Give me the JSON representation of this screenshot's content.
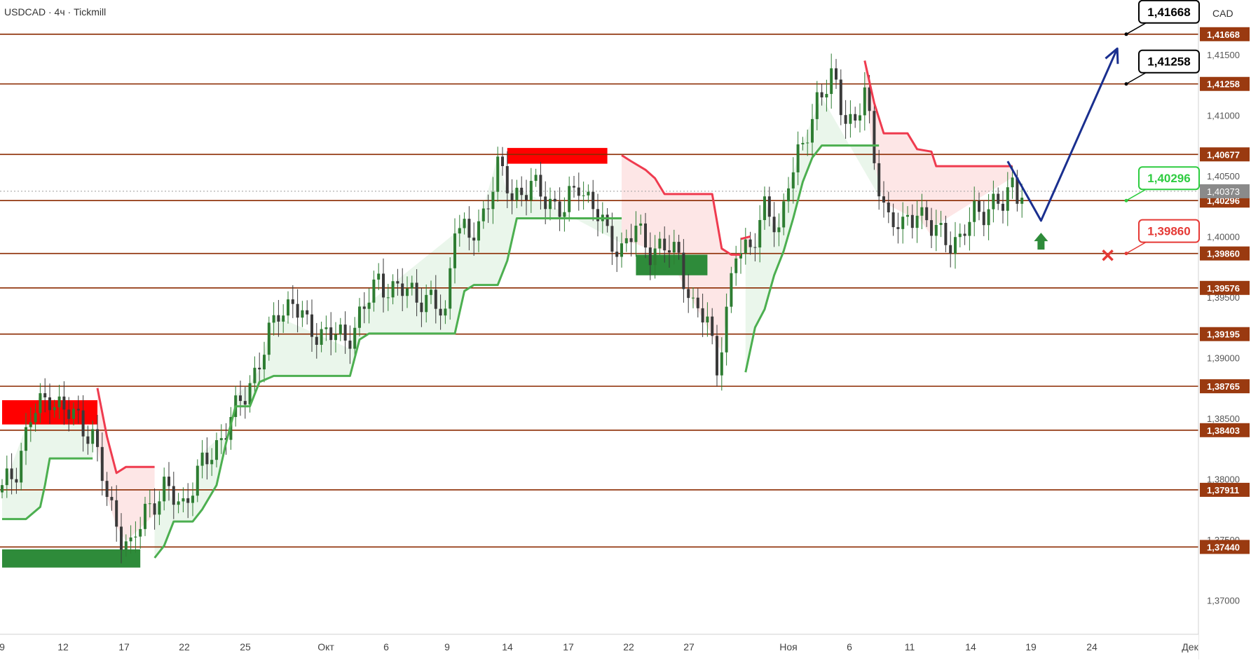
{
  "header": {
    "symbol_line": "USDCAD · 4ч · Tickmill"
  },
  "currency": "CAD",
  "colors": {
    "level_line": "#8b2a00",
    "level_tag_bg": "#9a3a10",
    "up_candle": "#2e7d32",
    "down_candle": "#3a3a3a",
    "trail_up": "#4caf50",
    "trail_down": "#ef3b4f",
    "fill_up": "#e8f5e9",
    "fill_down": "#fde3e3",
    "forecast": "#1a2f8f",
    "supply_zone": "#ff0000",
    "demand_zone": "#2e8b3a",
    "target_box_border": "#000000",
    "entry_box_border": "#2ecc40",
    "stop_box_border": "#e53935",
    "current_price_tag": "#8a8a8a"
  },
  "chart_data": {
    "type": "candlestick",
    "x_ticks": [
      "9",
      "12",
      "17",
      "22",
      "25",
      "Окт",
      "6",
      "9",
      "14",
      "17",
      "22",
      "27",
      "Ноя",
      "6",
      "11",
      "14",
      "19",
      "24",
      "Дек"
    ],
    "y_axis_ticks": [
      "1,41500",
      "1,41000",
      "1,40500",
      "1,40000",
      "1,39500",
      "1,39000",
      "1,38500",
      "1,38000",
      "1,37500",
      "1,37000"
    ],
    "y_axis_values": [
      1.415,
      1.41,
      1.405,
      1.4,
      1.395,
      1.39,
      1.385,
      1.38,
      1.375,
      1.37
    ],
    "ylim": [
      1.3672,
      1.4195
    ],
    "levels": [
      "1,41668",
      "1,41258",
      "1,40677",
      "1,40296",
      "1,39860",
      "1,39576",
      "1,39195",
      "1,38765",
      "1,38403",
      "1,37911",
      "1,37440"
    ],
    "level_values": [
      1.41668,
      1.41258,
      1.40677,
      1.40296,
      1.3986,
      1.39576,
      1.39195,
      1.38765,
      1.38403,
      1.37911,
      1.3744
    ],
    "current_price": "1,40373",
    "current_price_value": 1.40373,
    "anchor_closes": [
      [
        0,
        1.379
      ],
      [
        3,
        1.381
      ],
      [
        6,
        1.385
      ],
      [
        10,
        1.387
      ],
      [
        13,
        1.3855
      ],
      [
        16,
        1.385
      ],
      [
        19,
        1.3835
      ],
      [
        22,
        1.3785
      ],
      [
        25,
        1.3755
      ],
      [
        27,
        1.374
      ],
      [
        30,
        1.3775
      ],
      [
        34,
        1.379
      ],
      [
        38,
        1.378
      ],
      [
        42,
        1.381
      ],
      [
        46,
        1.3835
      ],
      [
        49,
        1.3855
      ],
      [
        52,
        1.388
      ],
      [
        55,
        1.3905
      ],
      [
        58,
        1.394
      ],
      [
        61,
        1.3945
      ],
      [
        64,
        1.3925
      ],
      [
        68,
        1.392
      ],
      [
        72,
        1.3915
      ],
      [
        76,
        1.394
      ],
      [
        79,
        1.3965
      ],
      [
        82,
        1.3955
      ],
      [
        86,
        1.3955
      ],
      [
        90,
        1.3945
      ],
      [
        93,
        1.3935
      ],
      [
        95,
        1.4015
      ],
      [
        98,
        1.3995
      ],
      [
        101,
        1.402
      ],
      [
        104,
        1.4055
      ],
      [
        107,
        1.4035
      ],
      [
        111,
        1.404
      ],
      [
        115,
        1.403
      ],
      [
        118,
        1.402
      ],
      [
        121,
        1.4045
      ],
      [
        124,
        1.4025
      ],
      [
        127,
        1.4
      ],
      [
        130,
        1.399
      ],
      [
        133,
        1.4005
      ],
      [
        136,
        1.399
      ],
      [
        139,
        1.399
      ],
      [
        142,
        1.3985
      ],
      [
        145,
        1.394
      ],
      [
        148,
        1.393
      ],
      [
        150,
        1.3895
      ],
      [
        152,
        1.3935
      ],
      [
        154,
        1.3985
      ],
      [
        157,
        1.3995
      ],
      [
        160,
        1.402
      ],
      [
        163,
        1.4005
      ],
      [
        165,
        1.405
      ],
      [
        168,
        1.407
      ],
      [
        171,
        1.4115
      ],
      [
        174,
        1.413
      ],
      [
        176,
        1.4105
      ],
      [
        179,
        1.4095
      ],
      [
        181,
        1.412
      ],
      [
        183,
        1.406
      ],
      [
        186,
        1.4015
      ],
      [
        189,
        1.4005
      ],
      [
        192,
        1.4025
      ],
      [
        195,
        1.4005
      ],
      [
        198,
        1.4
      ],
      [
        201,
        1.3995
      ],
      [
        204,
        1.402
      ],
      [
        207,
        1.4025
      ],
      [
        210,
        1.4025
      ],
      [
        212,
        1.4045
      ],
      [
        214,
        1.4032
      ]
    ],
    "trail_up_segments": [
      [
        [
          0,
          1.3767
        ],
        [
          5,
          1.3767
        ],
        [
          8,
          1.3777
        ],
        [
          9,
          1.3795
        ],
        [
          10,
          1.3817
        ],
        [
          19,
          1.3817
        ]
      ],
      [
        [
          32,
          1.3735
        ],
        [
          34,
          1.3745
        ],
        [
          36,
          1.3765
        ],
        [
          40,
          1.3765
        ],
        [
          42,
          1.3775
        ],
        [
          45,
          1.3795
        ],
        [
          47,
          1.383
        ],
        [
          49,
          1.386
        ],
        [
          52,
          1.386
        ],
        [
          54,
          1.388
        ],
        [
          57,
          1.3885
        ],
        [
          73,
          1.3885
        ],
        [
          75,
          1.3915
        ],
        [
          77,
          1.392
        ],
        [
          95,
          1.392
        ],
        [
          97,
          1.3955
        ],
        [
          99,
          1.396
        ],
        [
          104,
          1.396
        ],
        [
          106,
          1.398
        ],
        [
          108,
          1.4015
        ],
        [
          130,
          1.4015
        ]
      ],
      [
        [
          156,
          1.3888
        ],
        [
          158,
          1.3925
        ],
        [
          160,
          1.394
        ],
        [
          162,
          1.3968
        ],
        [
          164,
          1.3988
        ],
        [
          166,
          1.4015
        ],
        [
          168,
          1.4045
        ],
        [
          170,
          1.4065
        ],
        [
          172,
          1.4075
        ],
        [
          184,
          1.4075
        ]
      ]
    ],
    "trail_down_segments": [
      [
        [
          20,
          1.3875
        ],
        [
          22,
          1.3835
        ],
        [
          24,
          1.3805
        ],
        [
          26,
          1.381
        ],
        [
          32,
          1.381
        ]
      ],
      [
        [
          130,
          1.4067
        ],
        [
          132,
          1.4062
        ],
        [
          135,
          1.4055
        ],
        [
          137,
          1.4048
        ],
        [
          139,
          1.4035
        ],
        [
          149,
          1.4035
        ],
        [
          151,
          1.399
        ],
        [
          153,
          1.3985
        ],
        [
          155,
          1.3985
        ]
      ],
      [
        [
          155,
          1.3998
        ],
        [
          157,
          1.4
        ]
      ],
      [
        [
          181,
          1.4145
        ],
        [
          183,
          1.411
        ],
        [
          185,
          1.4085
        ],
        [
          190,
          1.4085
        ],
        [
          192,
          1.4072
        ],
        [
          195,
          1.407
        ],
        [
          196,
          1.4058
        ],
        [
          212,
          1.4058
        ]
      ]
    ],
    "supply_zones": [
      {
        "from": 0,
        "to": 20,
        "y_top": 1.3865,
        "y_bottom": 1.3845
      },
      {
        "from": 106,
        "to": 127,
        "y_top": 1.4073,
        "y_bottom": 1.406
      }
    ],
    "demand_zones": [
      {
        "from": 0,
        "to": 29,
        "y_top": 1.3742,
        "y_bottom": 1.3727
      },
      {
        "from": 133,
        "to": 148,
        "y_top": 1.3985,
        "y_bottom": 1.3968
      }
    ],
    "forecast_path": [
      [
        211,
        1.4062
      ],
      [
        218,
        1.4013
      ],
      [
        234,
        1.4155
      ]
    ],
    "forecast_up_arrow": [
      218,
      1.3995
    ],
    "stop_marker": [
      232,
      1.39845
    ],
    "price_boxes": [
      {
        "label": "1,41668",
        "value": 1.41668,
        "kind": "target"
      },
      {
        "label": "1,41258",
        "value": 1.41258,
        "kind": "target"
      },
      {
        "label": "1,40296",
        "value": 1.40296,
        "kind": "entry"
      },
      {
        "label": "1,39860",
        "value": 1.3986,
        "kind": "stop"
      }
    ]
  }
}
